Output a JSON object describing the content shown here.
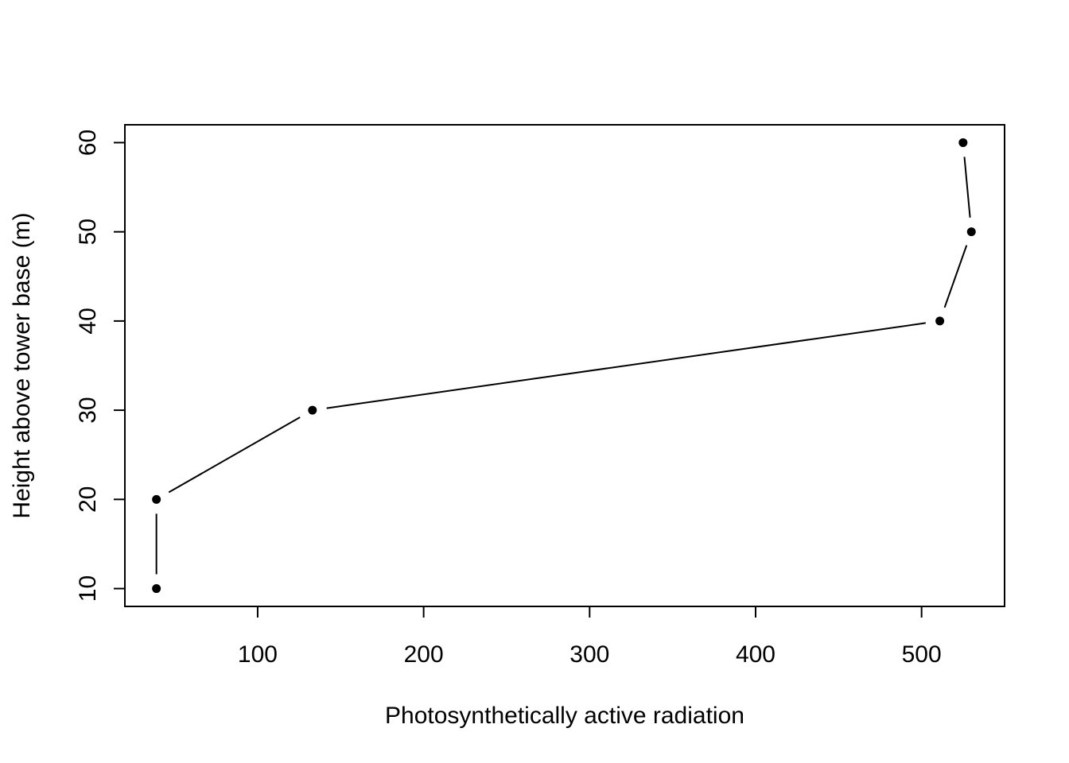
{
  "chart_data": {
    "type": "line",
    "xlabel": "Photosynthetically active radiation",
    "ylabel": "Height above tower base (m)",
    "xlim": [
      20,
      550
    ],
    "ylim": [
      8,
      62
    ],
    "x_ticks": [
      100,
      200,
      300,
      400,
      500
    ],
    "y_ticks": [
      10,
      20,
      30,
      40,
      50,
      60
    ],
    "grid": false,
    "series": [
      {
        "x": [
          39,
          39,
          133,
          511,
          530,
          525
        ],
        "y": [
          10,
          20,
          30,
          40,
          50,
          60
        ]
      }
    ],
    "colors": {
      "line": "#000000",
      "point": "#000000",
      "frame": "#000000",
      "background": "#ffffff"
    }
  }
}
